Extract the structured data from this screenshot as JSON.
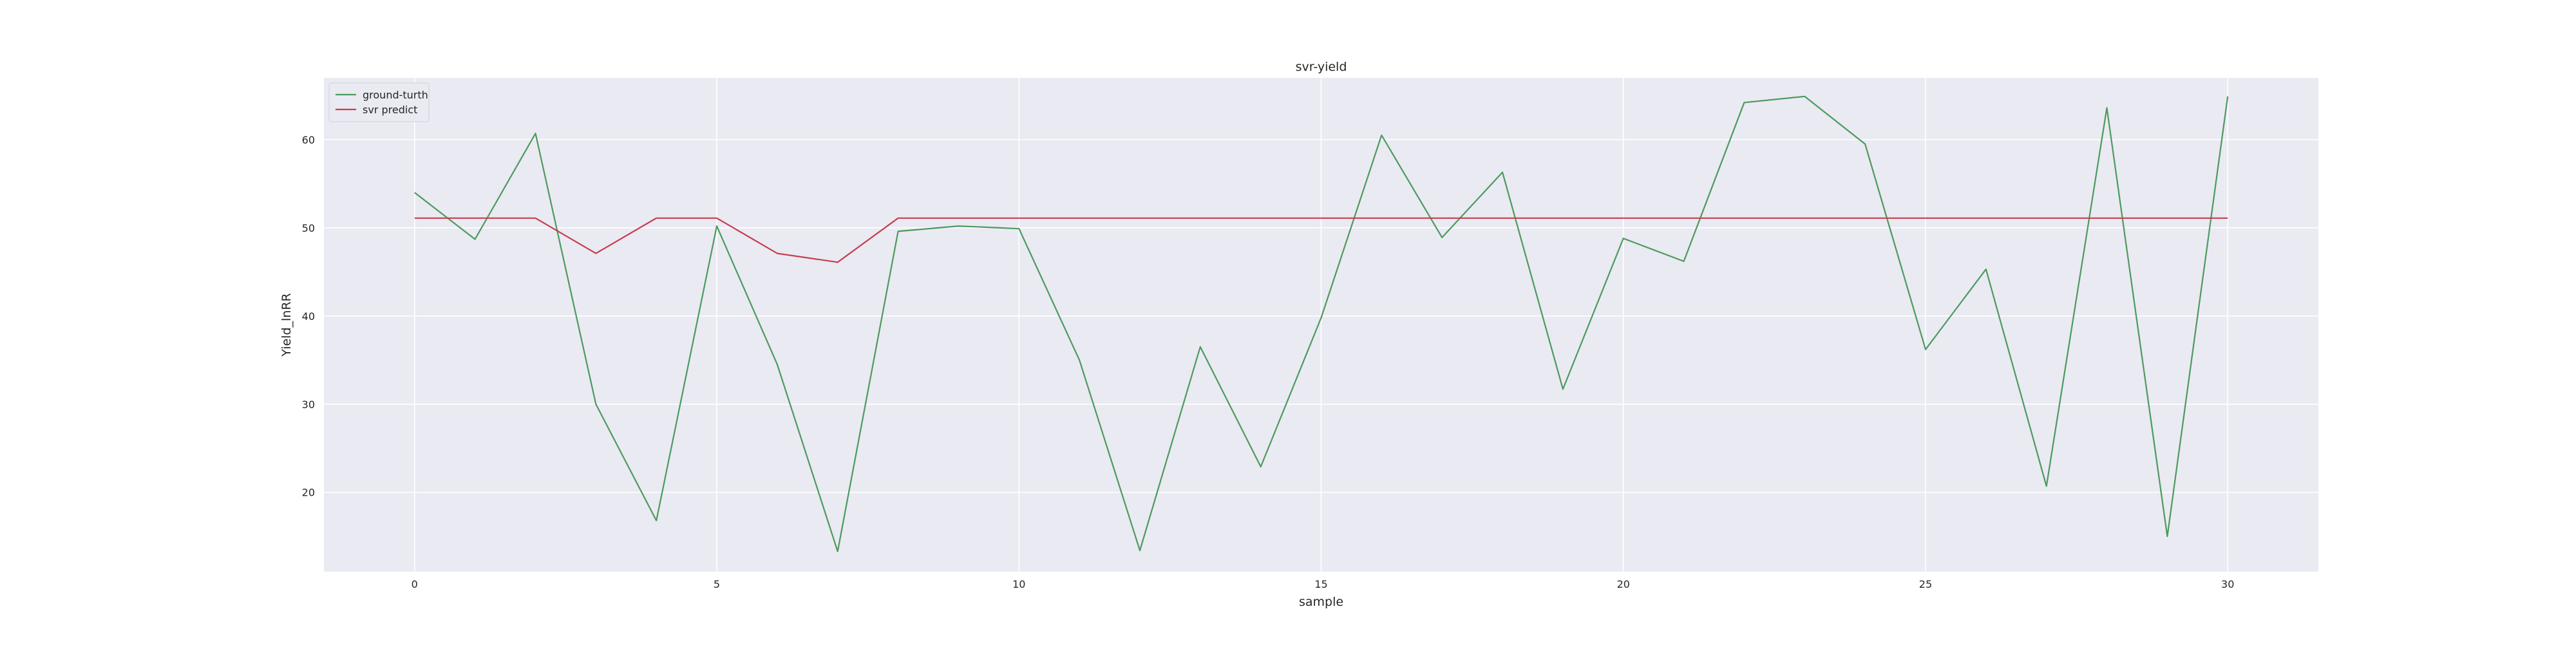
{
  "chart_data": {
    "type": "line",
    "title": "svr-yield",
    "xlabel": "sample",
    "ylabel": "Yield_lnRR",
    "xlim": [
      -1.5,
      31.5
    ],
    "ylim": [
      11,
      67
    ],
    "xticks": [
      0,
      5,
      10,
      15,
      20,
      25,
      30
    ],
    "yticks": [
      20,
      30,
      40,
      50,
      60
    ],
    "grid": true,
    "legend_position": "top-left",
    "x": [
      0,
      1,
      2,
      3,
      4,
      5,
      6,
      7,
      8,
      9,
      10,
      11,
      12,
      13,
      14,
      15,
      16,
      17,
      18,
      19,
      20,
      21,
      22,
      23,
      24,
      25,
      26,
      27,
      28,
      29,
      30
    ],
    "series": [
      {
        "name": "ground-turth",
        "color": "#4c9a5e",
        "values": [
          54.0,
          48.7,
          60.7,
          30.0,
          16.8,
          50.2,
          34.5,
          13.3,
          49.6,
          50.2,
          49.9,
          35.0,
          13.4,
          36.5,
          22.9,
          39.8,
          60.5,
          48.9,
          56.3,
          31.7,
          48.8,
          46.2,
          64.2,
          64.9,
          59.5,
          36.2,
          45.3,
          20.7,
          63.6,
          15.0,
          64.9
        ]
      },
      {
        "name": "svr predict",
        "color": "#c73e4e",
        "values": [
          51.1,
          51.1,
          51.1,
          47.1,
          51.1,
          51.1,
          47.1,
          46.1,
          51.1,
          51.1,
          51.1,
          51.1,
          51.1,
          51.1,
          51.1,
          51.1,
          51.1,
          51.1,
          51.1,
          51.1,
          51.1,
          51.1,
          51.1,
          51.1,
          51.1,
          51.1,
          51.1,
          51.1,
          51.1,
          51.1,
          51.1
        ]
      }
    ]
  },
  "colors": {
    "plot_background": "#eaeaf2",
    "grid": "#ffffff"
  }
}
